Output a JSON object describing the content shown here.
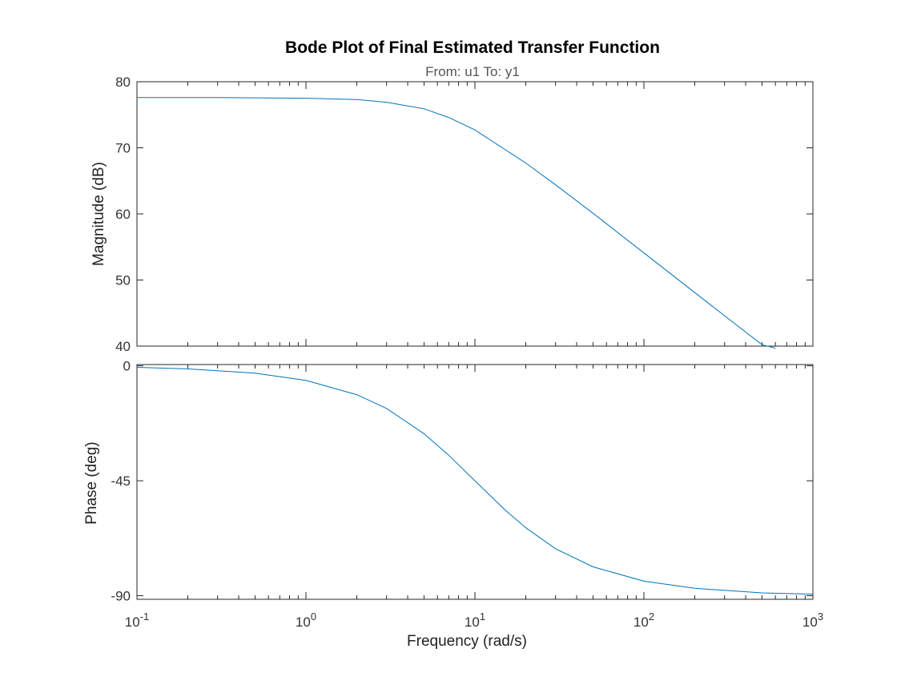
{
  "chart_data": {
    "type": "line",
    "title": "Bode Plot of Final Estimated Transfer Function",
    "subtitle": "From: u1  To: y1",
    "xlabel": "Frequency  (rad/s)",
    "xscale": "log",
    "xlim": [
      0.1,
      1000
    ],
    "xticks": [
      {
        "value": 0.1,
        "base": "10",
        "exp": "-1"
      },
      {
        "value": 1,
        "base": "10",
        "exp": "0"
      },
      {
        "value": 10,
        "base": "10",
        "exp": "1"
      },
      {
        "value": 100,
        "base": "10",
        "exp": "2"
      },
      {
        "value": 1000,
        "base": "10",
        "exp": "3"
      }
    ],
    "grid": false,
    "panels": [
      {
        "name": "magnitude",
        "ylabel": "Magnitude (dB)",
        "ylim": [
          40,
          80
        ],
        "yticks": [
          {
            "value": 40,
            "label": "40"
          },
          {
            "value": 50,
            "label": "50"
          },
          {
            "value": 60,
            "label": "60"
          },
          {
            "value": 70,
            "label": "70"
          },
          {
            "value": 80,
            "label": "80"
          }
        ],
        "x": [
          0.1,
          0.3,
          1,
          2,
          3,
          5,
          7,
          10,
          20,
          30,
          50,
          100,
          200,
          300,
          500,
          600
        ],
        "y": [
          77.6,
          77.6,
          77.5,
          77.3,
          76.9,
          75.9,
          74.6,
          72.7,
          67.7,
          64.4,
          60.1,
          54.1,
          48.1,
          44.6,
          40.2,
          39.7
        ]
      },
      {
        "name": "phase",
        "ylabel": "Phase (deg)",
        "ylim": [
          -91.4,
          0.5
        ],
        "yticks": [
          {
            "value": 0,
            "label": "0"
          },
          {
            "value": -45,
            "label": "-45"
          },
          {
            "value": -90,
            "label": "-90"
          }
        ],
        "x": [
          0.1,
          0.2,
          0.5,
          1,
          2,
          3,
          5,
          7,
          10,
          15,
          20,
          30,
          50,
          100,
          200,
          500,
          1000
        ],
        "y": [
          -0.6,
          -1.2,
          -2.9,
          -5.7,
          -11.3,
          -16.7,
          -26.6,
          -35.0,
          -45.0,
          -56.3,
          -63.4,
          -71.6,
          -78.7,
          -84.3,
          -87.1,
          -88.9,
          -89.4
        ]
      }
    ]
  }
}
